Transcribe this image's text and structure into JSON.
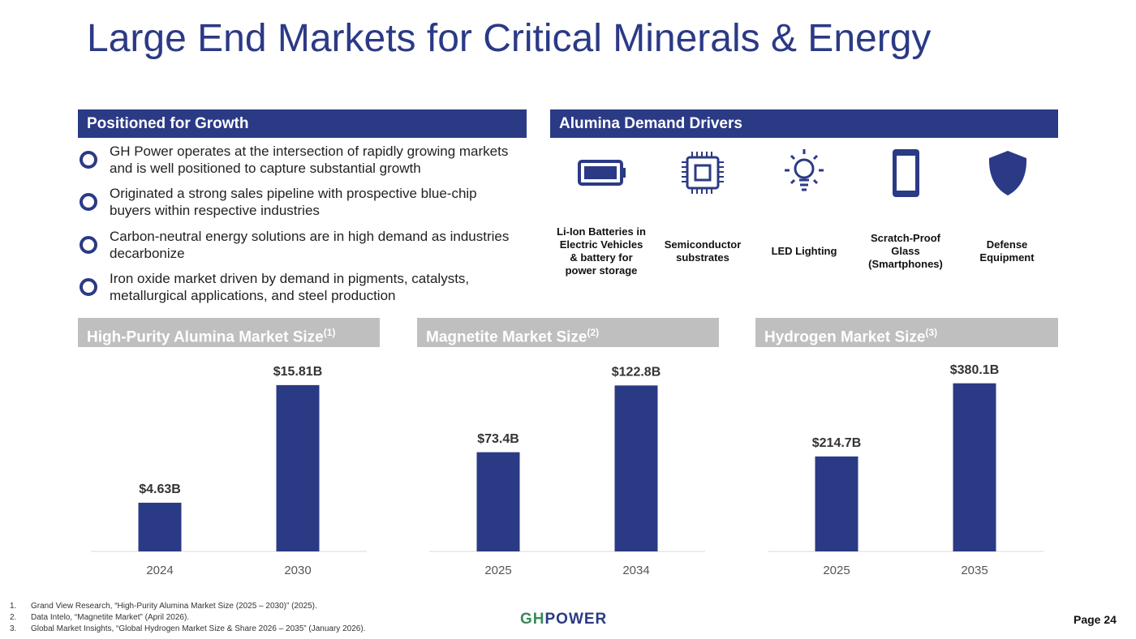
{
  "header": {
    "title": "Large End Markets for Critical Minerals & Energy"
  },
  "growth": {
    "title": "Positioned for Growth",
    "bullets": [
      "GH Power operates at the intersection of rapidly growing markets and is well positioned to capture substantial growth",
      "Originated a strong sales pipeline with prospective blue-chip buyers within respective industries",
      "Carbon-neutral energy solutions are in high demand as industries decarbonize",
      "Iron oxide market driven by demand in pigments, catalysts, metallurgical applications, and steel production"
    ]
  },
  "drivers": {
    "title": "Alumina Demand Drivers",
    "items": [
      "Li-Ion Batteries in Electric Vehicles & battery for power storage",
      "Semiconductor substrates",
      "LED Lighting",
      "Scratch-Proof Glass (Smartphones)",
      "Defense Equipment"
    ]
  },
  "chart_data": [
    {
      "type": "bar",
      "title": "High-Purity Alumina Market Size",
      "title_note": "(1)",
      "categories": [
        "2024",
        "2030"
      ],
      "values": [
        4.63,
        15.81
      ],
      "value_labels": [
        "$4.63B",
        "$15.81B"
      ],
      "color": "#2b3a85",
      "ylim": [
        0,
        18.5
      ]
    },
    {
      "type": "bar",
      "title": "Magnetite Market Size",
      "title_note": "(2)",
      "categories": [
        "2025",
        "2034"
      ],
      "values": [
        73.4,
        122.8
      ],
      "value_labels": [
        "$73.4B",
        "$122.8B"
      ],
      "color": "#2b3a85",
      "ylim": [
        0,
        144
      ]
    },
    {
      "type": "bar",
      "title": "Hydrogen Market Size",
      "title_note": "(3)",
      "categories": [
        "2025",
        "2035"
      ],
      "values": [
        214.7,
        380.1
      ],
      "value_labels": [
        "$214.7B",
        "$380.1B"
      ],
      "color": "#2b3a85",
      "ylim": [
        0,
        440
      ]
    }
  ],
  "footer": {
    "footnotes": [
      {
        "number": "1.",
        "text": "Grand View Research, “High-Purity Alumina Market Size (2025 – 2030)” (2025)."
      },
      {
        "number": "2.",
        "text": "Data Intelo, “Magnetite Market” (April 2026)."
      },
      {
        "number": "3.",
        "text": "Global Market Insights, “Global Hydrogen Market Size & Share 2026 – 2035” (January 2026)."
      }
    ],
    "logo": [
      "GH",
      "POWER"
    ],
    "page": "Page 24"
  }
}
